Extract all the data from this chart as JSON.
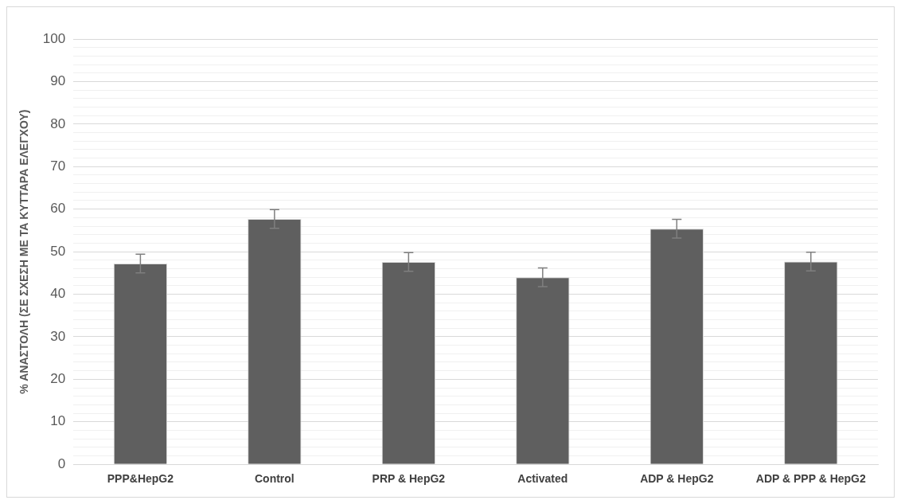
{
  "chart_data": {
    "type": "bar",
    "ylabel": "% ΑΝΑΣΤΟΛΗ (ΣΕ ΣΧΕΣΗ ΜΕ ΤΑ ΚΥΤΤΑΡΑ ΕΛΕΓΧΟΥ)",
    "categories": [
      "PPP&HepG2",
      "Control",
      "PRP & HepG2",
      "Activated",
      "ADP & HepG2",
      "ADP & PPP & HepG2"
    ],
    "values": [
      47.2,
      57.7,
      47.6,
      44.0,
      55.4,
      47.7
    ],
    "errors": [
      2.2,
      2.2,
      2.2,
      2.2,
      2.2,
      2.2
    ],
    "color": "#5f5f5f",
    "ylim": [
      0,
      100
    ],
    "yticks": [
      0,
      {
        "value": 2,
        "label": null
      },
      {
        "value": 4,
        "label": null
      },
      {
        "value": 6,
        "label": null
      },
      {
        "value": 8,
        "label": null
      },
      10,
      {
        "value": 12,
        "label": null
      },
      {
        "value": 14,
        "label": null
      },
      {
        "value": 16,
        "label": null
      },
      {
        "value": 18,
        "label": null
      },
      20,
      {
        "value": 22,
        "label": null
      },
      {
        "value": 24,
        "label": null
      },
      {
        "value": 26,
        "label": null
      },
      {
        "value": 28,
        "label": null
      },
      30,
      {
        "value": 32,
        "label": null
      },
      {
        "value": 34,
        "label": null
      },
      {
        "value": 36,
        "label": null
      },
      {
        "value": 38,
        "label": null
      },
      40,
      {
        "value": 42,
        "label": null
      },
      {
        "value": 44,
        "label": null
      },
      {
        "value": 46,
        "label": null
      },
      {
        "value": 48,
        "label": null
      },
      50,
      {
        "value": 52,
        "label": null
      },
      {
        "value": 54,
        "label": null
      },
      {
        "value": 56,
        "label": null
      },
      {
        "value": 58,
        "label": null
      },
      60,
      {
        "value": 62,
        "label": null
      },
      {
        "value": 64,
        "label": null
      },
      {
        "value": 66,
        "label": null
      },
      {
        "value": 68,
        "label": null
      },
      70,
      {
        "value": 72,
        "label": null
      },
      {
        "value": 74,
        "label": null
      },
      {
        "value": 76,
        "label": null
      },
      {
        "value": 78,
        "label": null
      },
      80,
      {
        "value": 82,
        "label": null
      },
      {
        "value": 84,
        "label": null
      },
      {
        "value": 86,
        "label": null
      },
      {
        "value": 88,
        "label": null
      },
      90,
      {
        "value": 92,
        "label": null
      },
      {
        "value": 94,
        "label": null
      },
      {
        "value": 96,
        "label": null
      },
      {
        "value": 98,
        "label": null
      },
      100
    ],
    "grid": "y"
  }
}
